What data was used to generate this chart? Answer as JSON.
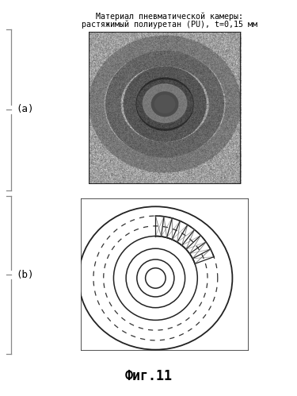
{
  "title": "Фиг.11",
  "label_a": "(a)",
  "label_b": "(b)",
  "header_line1": "Материал пневматической камеры:",
  "header_line2": "растяжимый полиуретан (PU), t=0,15 мм",
  "bg_color": "#ffffff",
  "text_color": "#000000",
  "fig_width": 3.75,
  "fig_height": 4.99,
  "dpi": 100
}
